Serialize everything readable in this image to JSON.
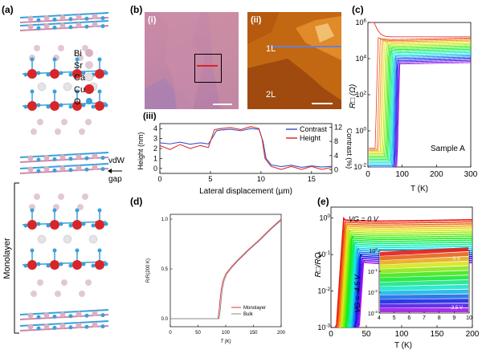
{
  "figure": {
    "panel_labels": {
      "a": "(a)",
      "b": "(b)",
      "c": "(c)",
      "d": "(d)",
      "e": "(e)"
    },
    "sub_labels": {
      "i": "(i)",
      "ii": "(ii)",
      "iii": "(iii)"
    },
    "crystal": {
      "legend": [
        {
          "label": "Bi",
          "color": "#d9b0c4"
        },
        {
          "label": "Sr",
          "color": "#e2c8d6"
        },
        {
          "label": "Ca",
          "color": "#e4e4e6"
        },
        {
          "label": "Cu",
          "color": "#d6262a"
        },
        {
          "label": "O",
          "color": "#39a0d9"
        }
      ],
      "vdw_label": "vdW",
      "gap_label": "gap",
      "monolayer_label": "Monolayer"
    },
    "afm": {
      "label_1L": "1L",
      "label_2L": "2L"
    }
  },
  "chart_data": [
    {
      "id": "b-iii",
      "type": "line",
      "xlabel": "Lateral displacement (µm)",
      "ylabel_left": "Height (nm)",
      "ylabel_right": "Contrast (%)",
      "xlim": [
        0,
        17
      ],
      "ylim_left": [
        -0.5,
        4.5
      ],
      "ylim_right": [
        -1,
        13
      ],
      "xticks": [
        "0",
        "5",
        "10",
        "15"
      ],
      "yticks_left": [
        "0",
        "1",
        "2",
        "3",
        "4"
      ],
      "yticks_right": [
        "0",
        "4",
        "8",
        "12"
      ],
      "legend": [
        "Contrast",
        "Height"
      ],
      "series": [
        {
          "name": "Contrast",
          "color": "#3f55c8",
          "x": [
            0,
            1,
            2,
            3,
            4,
            4.8,
            5.3,
            5.6,
            6,
            7,
            8,
            9,
            9.8,
            10.2,
            10.5,
            11,
            12,
            13,
            14,
            15,
            16,
            17
          ],
          "y_right": [
            7.6,
            7.3,
            7.8,
            7.2,
            7.6,
            7.3,
            9.5,
            11.0,
            11.2,
            11.4,
            11.0,
            11.6,
            11.4,
            8.0,
            3.2,
            1.4,
            0.9,
            1.3,
            0.7,
            1.1,
            0.8,
            1.0
          ]
        },
        {
          "name": "Height",
          "color": "#d8332f",
          "x": [
            0,
            1,
            2,
            3,
            4,
            4.8,
            5.1,
            5.4,
            6,
            7,
            8,
            9,
            9.8,
            10.1,
            10.4,
            11,
            12,
            13,
            14,
            15,
            16,
            17
          ],
          "y": [
            2.3,
            1.9,
            2.4,
            2.0,
            2.3,
            2.1,
            3.0,
            3.9,
            4.0,
            4.1,
            3.9,
            4.2,
            4.0,
            3.0,
            1.0,
            0.2,
            -0.1,
            0.2,
            -0.1,
            0.2,
            -0.1,
            0.1
          ]
        }
      ]
    },
    {
      "id": "c",
      "type": "line",
      "xlabel": "T (K)",
      "ylabel": "R□ (Ω)",
      "yscale": "log",
      "xlim": [
        0,
        300
      ],
      "ylim": [
        0.01,
        1000000
      ],
      "xticks": [
        "0",
        "100",
        "200",
        "300"
      ],
      "yticks": [
        "10^-2",
        "10^0",
        "10^2",
        "10^4",
        "10^6"
      ],
      "annotation": "Sample A",
      "curves": 24,
      "description_series": {
        "Tc_range_K": [
          10,
          85
        ],
        "R_300K_range_ohm": [
          6000,
          160000
        ]
      }
    },
    {
      "id": "d",
      "type": "line",
      "xlabel": "T (K)",
      "ylabel": "R/R(200 K)",
      "xlim": [
        0,
        200
      ],
      "ylim": [
        0,
        1
      ],
      "xticks": [
        "0",
        "50",
        "100",
        "150",
        "200"
      ],
      "yticks": [
        "0.0",
        "0.5",
        "1.0"
      ],
      "legend": [
        "Monolayer",
        "Bulk"
      ],
      "series": [
        {
          "name": "Monolayer",
          "color": "#e0303a",
          "x": [
            0,
            80,
            86,
            88,
            90,
            92,
            95,
            100,
            110,
            120,
            140,
            160,
            180,
            200
          ],
          "y": [
            0,
            0,
            0,
            0.08,
            0.2,
            0.3,
            0.38,
            0.45,
            0.52,
            0.58,
            0.69,
            0.79,
            0.9,
            1.0
          ]
        },
        {
          "name": "Bulk",
          "color": "#8a8a8a",
          "x": [
            0,
            80,
            88,
            90,
            92,
            94,
            97,
            102,
            112,
            122,
            142,
            162,
            182,
            200
          ],
          "y": [
            0,
            0,
            0,
            0.08,
            0.2,
            0.3,
            0.38,
            0.45,
            0.52,
            0.58,
            0.69,
            0.79,
            0.9,
            0.99
          ]
        }
      ]
    },
    {
      "id": "e",
      "type": "line",
      "xlabel": "T (K)",
      "ylabel": "R□/RQ",
      "yscale": "log",
      "xlim": [
        0,
        200
      ],
      "ylim": [
        0.001,
        2
      ],
      "xticks": [
        "0",
        "50",
        "100",
        "150",
        "200"
      ],
      "yticks": [
        "10^-3",
        "10^-2",
        "10^-1",
        "10^0"
      ],
      "annotations": [
        "VG = 0 V",
        "VG = -4.5 V"
      ],
      "inset": {
        "xlim": [
          4,
          10
        ],
        "ylim": [
          0.001,
          1
        ],
        "xticks": [
          "4",
          "5",
          "6",
          "7",
          "8",
          "9",
          "10"
        ],
        "yticks": [
          "10^-3",
          "10^-2",
          "10^-1",
          "10^0"
        ],
        "annotations": [
          "0 V",
          "-3.5 V"
        ]
      }
    }
  ]
}
